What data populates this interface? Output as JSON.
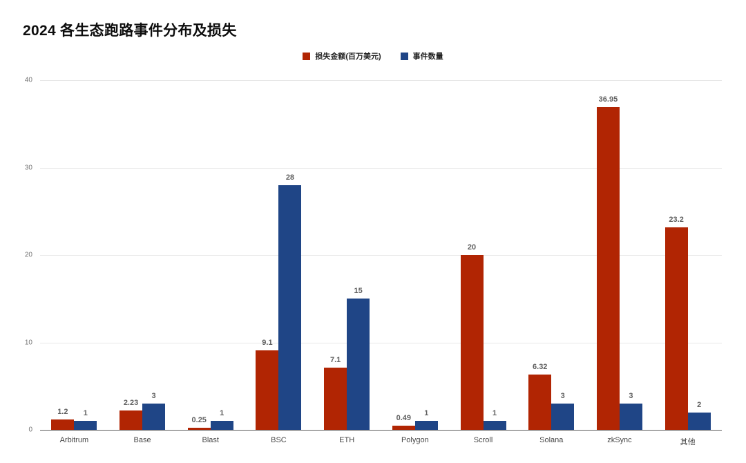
{
  "title": "2024 各生态跑路事件分布及损失",
  "colors": {
    "loss": "#b12503",
    "count": "#1f4586",
    "gridline": "#e7e7e7",
    "axis_line": "#5a5a5a"
  },
  "chart_data": {
    "type": "bar",
    "title": "2024 各生态跑路事件分布及损失",
    "categories": [
      "Arbitrum",
      "Base",
      "Blast",
      "BSC",
      "ETH",
      "Polygon",
      "Scroll",
      "Solana",
      "zkSync",
      "其他"
    ],
    "series": [
      {
        "name": "损失金额(百万美元)",
        "color": "#b12503",
        "values": [
          1.2,
          2.23,
          0.25,
          9.1,
          7.1,
          0.49,
          20,
          6.32,
          36.95,
          23.2
        ],
        "labels": [
          "1.2",
          "2.23",
          "0.25",
          "9.1",
          "7.1",
          "0.49",
          "20",
          "6.32",
          "36.95",
          "23.2"
        ]
      },
      {
        "name": "事件数量",
        "color": "#1f4586",
        "values": [
          1,
          3,
          1,
          28,
          15,
          1,
          1,
          3,
          3,
          2
        ],
        "labels": [
          "1",
          "3",
          "1",
          "28",
          "15",
          "1",
          "1",
          "3",
          "3",
          "2"
        ]
      }
    ],
    "xlabel": "",
    "ylabel": "",
    "ylim": [
      0,
      40
    ],
    "yticks": [
      0,
      10,
      20,
      30,
      40
    ],
    "grid": true,
    "legend_position": "top-center"
  }
}
